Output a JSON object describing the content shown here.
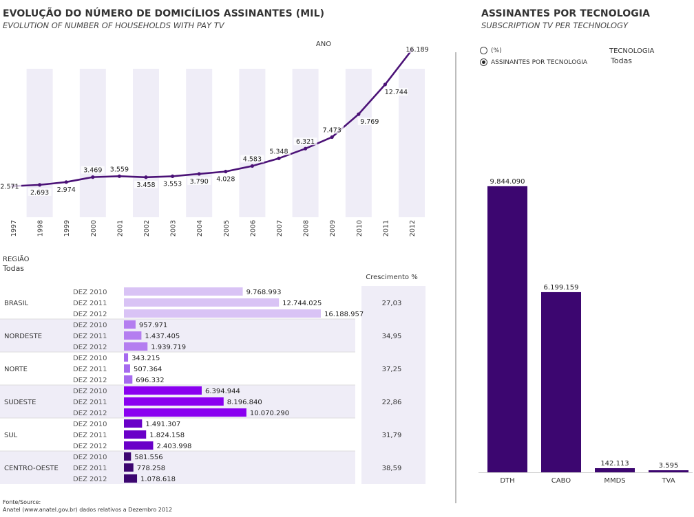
{
  "left": {
    "title": "EVOLUÇÃO DO NÚMERO DE DOMICÍLIOS ASSINANTES (MIL)",
    "subtitle": "EVOLUTION OF NUMBER OF HOUSEHOLDS WITH PAY TV",
    "axis_title": "ANO"
  },
  "region_filter": {
    "label": "REGIÃO",
    "value": "Todas"
  },
  "growth_header": "Crescimento %",
  "footer": {
    "line1": "Fonte/Source:",
    "line2": "Anatel (www.anatel.gov.br) dados relativos a Dezembro 2012"
  },
  "right": {
    "title": "ASSINANTES POR TECNOLOGIA",
    "subtitle": "SUBSCRIPTION TV PER TECHNOLOGY",
    "radio_pct": "(%)",
    "radio_subs": "ASSINANTES POR TECNOLOGIA",
    "tech_filter_label": "TECNOLOGIA",
    "tech_filter_value": "Todas"
  },
  "colors": {
    "line": "#4b1277",
    "band": "#efedf7",
    "brasil": "#d9c3f5",
    "nordeste": "#b47ef0",
    "norte": "#a66aef",
    "sudeste": "#8a00f0",
    "sul": "#6a00c8",
    "centro_oeste": "#3c0670",
    "tech_bar": "#3c0670"
  },
  "chart_data": [
    {
      "type": "line",
      "title": "EVOLUÇÃO DO NÚMERO DE DOMICÍLIOS ASSINANTES (MIL)",
      "xlabel": "ANO",
      "x": [
        "1997",
        "1998",
        "1999",
        "2000",
        "2001",
        "2002",
        "2003",
        "2004",
        "2005",
        "2006",
        "2007",
        "2008",
        "2009",
        "2010",
        "2011",
        "2012"
      ],
      "values": [
        2571,
        2693,
        2974,
        3469,
        3559,
        3458,
        3553,
        3790,
        4028,
        4583,
        5348,
        6321,
        7473,
        9769,
        12744,
        16189
      ],
      "labels": [
        "2.571",
        "2.693",
        "2.974",
        "3.469",
        "3.559",
        "3.458",
        "3.553",
        "3.790",
        "4.028",
        "4.583",
        "5.348",
        "6.321",
        "7.473",
        "9.769",
        "12.744",
        "16.189"
      ],
      "ylim": [
        0,
        16800
      ],
      "grid": false
    },
    {
      "type": "bar",
      "orientation": "horizontal",
      "categories": [
        "DEZ 2010",
        "DEZ 2011",
        "DEZ 2012"
      ],
      "xlim": [
        0,
        20000000
      ],
      "groups": [
        {
          "name": "BRASIL",
          "color_key": "brasil",
          "values": [
            9768993,
            12744025,
            16188957
          ],
          "labels": [
            "9.768.993",
            "12.744.025",
            "16.188.957"
          ],
          "growth": "27,03"
        },
        {
          "name": "NORDESTE",
          "color_key": "nordeste",
          "values": [
            957971,
            1437405,
            1939719
          ],
          "labels": [
            "957.971",
            "1.437.405",
            "1.939.719"
          ],
          "growth": "34,95"
        },
        {
          "name": "NORTE",
          "color_key": "norte",
          "values": [
            343215,
            507364,
            696332
          ],
          "labels": [
            "343.215",
            "507.364",
            "696.332"
          ],
          "growth": "37,25"
        },
        {
          "name": "SUDESTE",
          "color_key": "sudeste",
          "values": [
            6394944,
            8196840,
            10070290
          ],
          "labels": [
            "6.394.944",
            "8.196.840",
            "10.070.290"
          ],
          "growth": "22,86"
        },
        {
          "name": "SUL",
          "color_key": "sul",
          "values": [
            1491307,
            1824158,
            2403998
          ],
          "labels": [
            "1.491.307",
            "1.824.158",
            "2.403.998"
          ],
          "growth": "31,79"
        },
        {
          "name": "CENTRO-OESTE",
          "color_key": "centro_oeste",
          "values": [
            581556,
            778258,
            1078618
          ],
          "labels": [
            "581.556",
            "778.258",
            "1.078.618"
          ],
          "growth": "38,59"
        }
      ]
    },
    {
      "type": "bar",
      "title": "ASSINANTES POR TECNOLOGIA",
      "categories": [
        "DTH",
        "CABO",
        "MMDS",
        "TVA"
      ],
      "values": [
        9844090,
        6199159,
        142113,
        3595
      ],
      "labels": [
        "9.844.090",
        "6.199.159",
        "142.113",
        "3.595"
      ],
      "ylim": [
        0,
        11000000
      ]
    }
  ]
}
